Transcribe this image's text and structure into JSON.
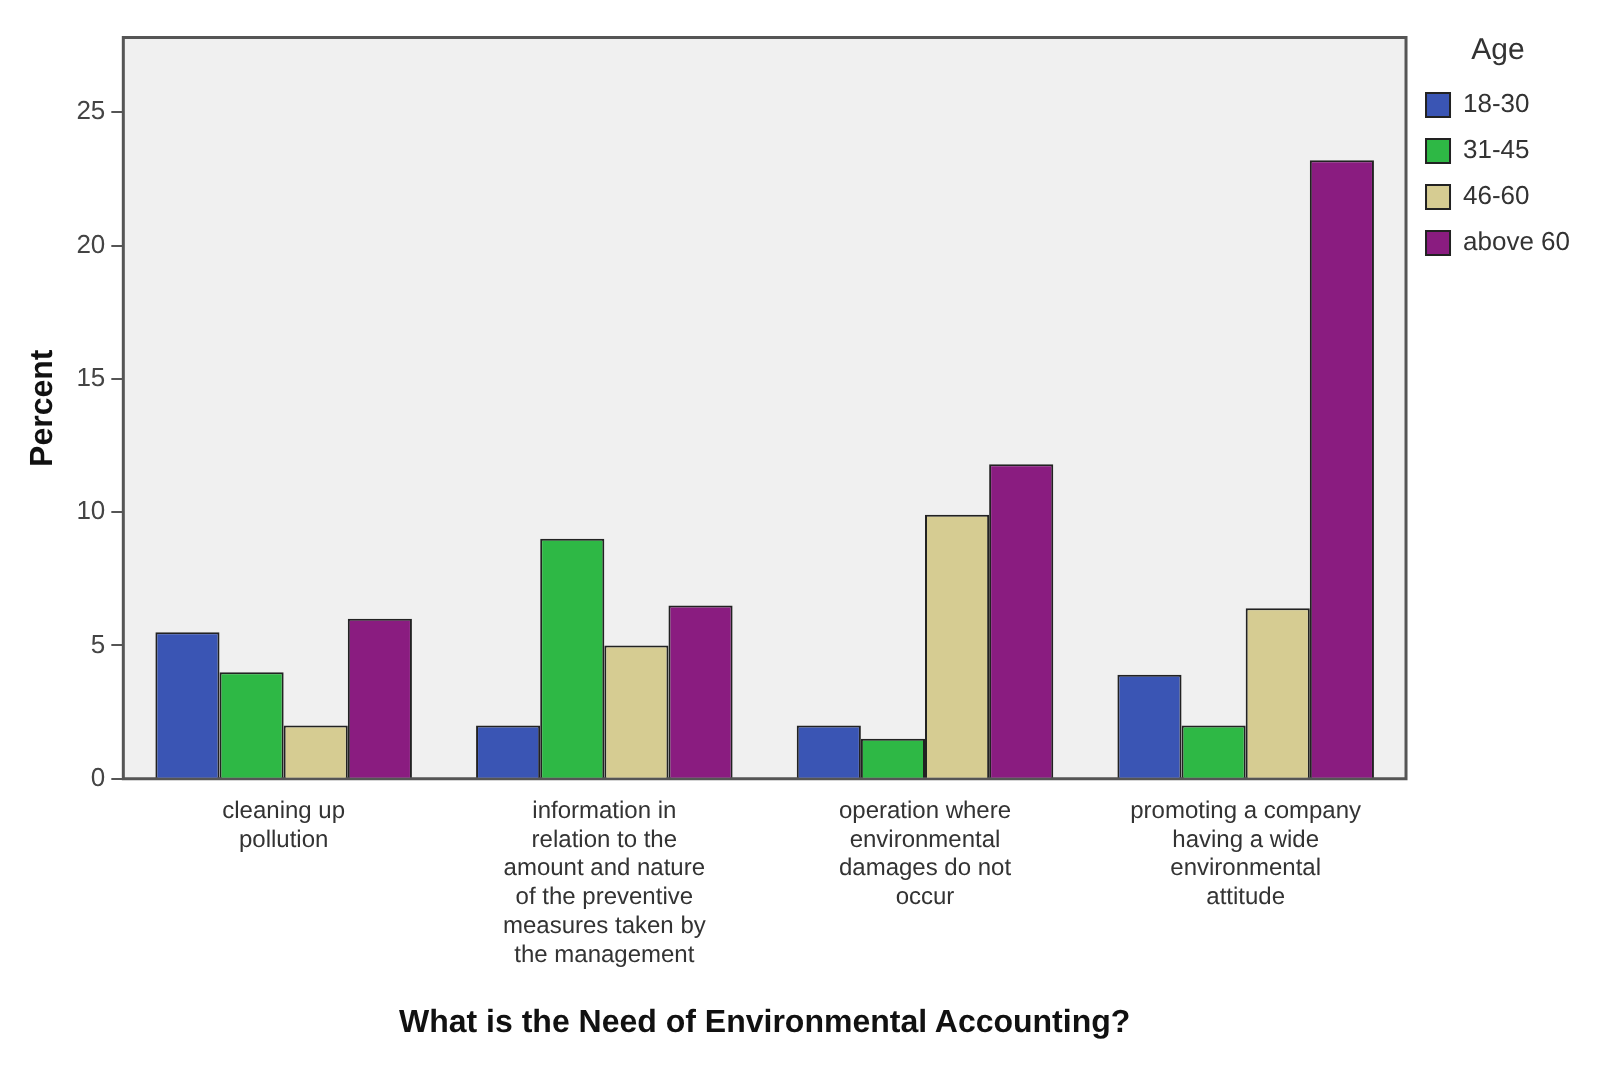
{
  "chart_data": {
    "type": "bar",
    "xlabel": "What is the Need of Environmental Accounting?",
    "ylabel": "Percent",
    "legend_title": "Age",
    "legend": "top right",
    "categories": [
      "cleaning up pollution",
      "information in relation to the amount and nature of the preventive measures taken by the management",
      "operation where environmental damages do not occur",
      "promoting a company having a wide environmental attitude"
    ],
    "series": [
      {
        "name": "18-30",
        "color": "#3a55b4",
        "values": [
          5.5,
          2,
          2,
          3.9
        ]
      },
      {
        "name": "31-45",
        "color": "#2eb845",
        "values": [
          4,
          9,
          1.5,
          2
        ]
      },
      {
        "name": "46-60",
        "color": "#d6cc92",
        "values": [
          2,
          5,
          9.9,
          6.4
        ]
      },
      {
        "name": "above 60",
        "color": "#8a1c80",
        "values": [
          6,
          6.5,
          11.8,
          23.2
        ]
      }
    ],
    "ylim": [
      0,
      27.8
    ],
    "yticks": [
      0,
      5,
      10,
      15,
      20,
      25
    ],
    "grid": false
  }
}
